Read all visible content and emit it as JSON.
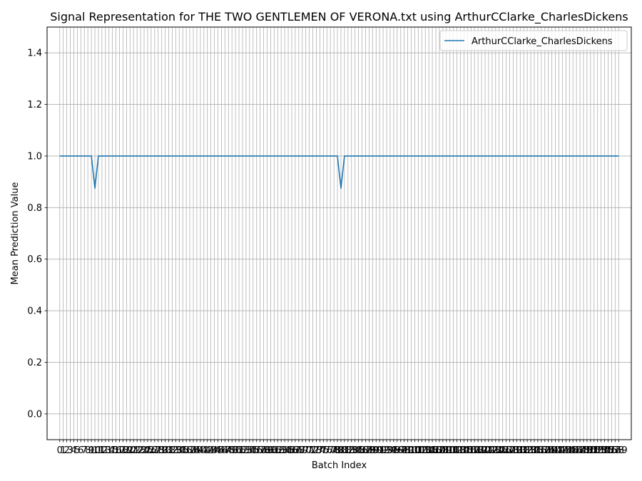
{
  "chart_data": {
    "type": "line",
    "title": "Signal Representation for THE TWO GENTLEMEN OF VERONA.txt using ArthurCClarke_CharlesDickens",
    "xlabel": "Batch Index",
    "ylabel": "Mean Prediction Value",
    "xlim": [
      -3.6,
      162.6
    ],
    "ylim": [
      -0.1,
      1.5
    ],
    "y_ticks": [
      0.0,
      0.2,
      0.4,
      0.6,
      0.8,
      1.0,
      1.2,
      1.4
    ],
    "x_tick_count": 160,
    "grid": true,
    "legend_position": "top-right",
    "series": [
      {
        "name": "ArthurCClarke_CharlesDickens",
        "color": "#1f77b4",
        "x_count": 160,
        "default_value": 1.0,
        "dips": [
          {
            "index": 10,
            "value": 0.875
          },
          {
            "index": 80,
            "value": 0.875
          }
        ]
      }
    ]
  }
}
